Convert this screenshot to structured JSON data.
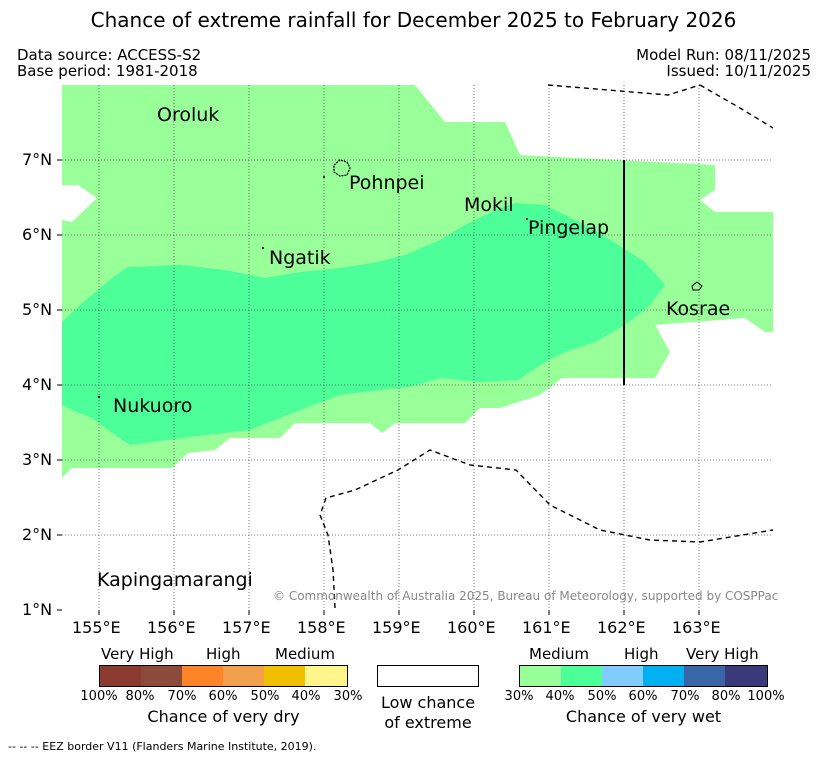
{
  "title": "Chance of extreme rainfall for December 2025 to February 2026",
  "meta": {
    "data_source": "Data source: ACCESS-S2",
    "base_period": "Base period: 1981-2018",
    "model_run": "Model Run: 08/11/2025",
    "issued": "Issued: 10/11/2025"
  },
  "map": {
    "places": {
      "oroluk": "Oroluk",
      "pohnpei": "Pohnpei",
      "mokil": "Mokil",
      "pingelap": "Pingelap",
      "ngatik": "Ngatik",
      "kosrae": "Kosrae",
      "nukuoro": "Nukuoro",
      "kapingamarangi": "Kapingamarangi"
    },
    "lat_labels": [
      "7°N",
      "6°N",
      "5°N",
      "4°N",
      "3°N",
      "2°N",
      "1°N"
    ],
    "lon_labels": [
      "155°E",
      "156°E",
      "157°E",
      "158°E",
      "159°E",
      "160°E",
      "161°E",
      "162°E",
      "163°E"
    ],
    "copyright": "© Commonwealth of Australia 2025, Bureau of Meteorology, supported by COSPPac",
    "colors": {
      "medium_wet": "#99ff99",
      "medium_high_wet": "#4dff99",
      "background": "#ffffff"
    }
  },
  "legend": {
    "dry": {
      "headers": [
        "Very High",
        "High",
        "Medium"
      ],
      "colors": [
        "#8b3a30",
        "#8c4a3a",
        "#ff8427",
        "#f0a04a",
        "#f0c000",
        "#fff58a"
      ],
      "ticks": [
        "100%",
        "80%",
        "70%",
        "60%",
        "50%",
        "40%",
        "30%"
      ],
      "title": "Chance of very dry"
    },
    "low": {
      "line1": "Low chance",
      "line2": "of extreme"
    },
    "wet": {
      "headers": [
        "Medium",
        "High",
        "Very High"
      ],
      "colors": [
        "#99ff99",
        "#4dff99",
        "#80ccff",
        "#00b0f0",
        "#3a66a8",
        "#3a3a7a"
      ],
      "ticks": [
        "30%",
        "40%",
        "50%",
        "60%",
        "70%",
        "80%",
        "100%"
      ],
      "title": "Chance of very wet"
    }
  },
  "footer": "--  --  -- EEZ border V11 (Flanders Marine Institute, 2019)."
}
